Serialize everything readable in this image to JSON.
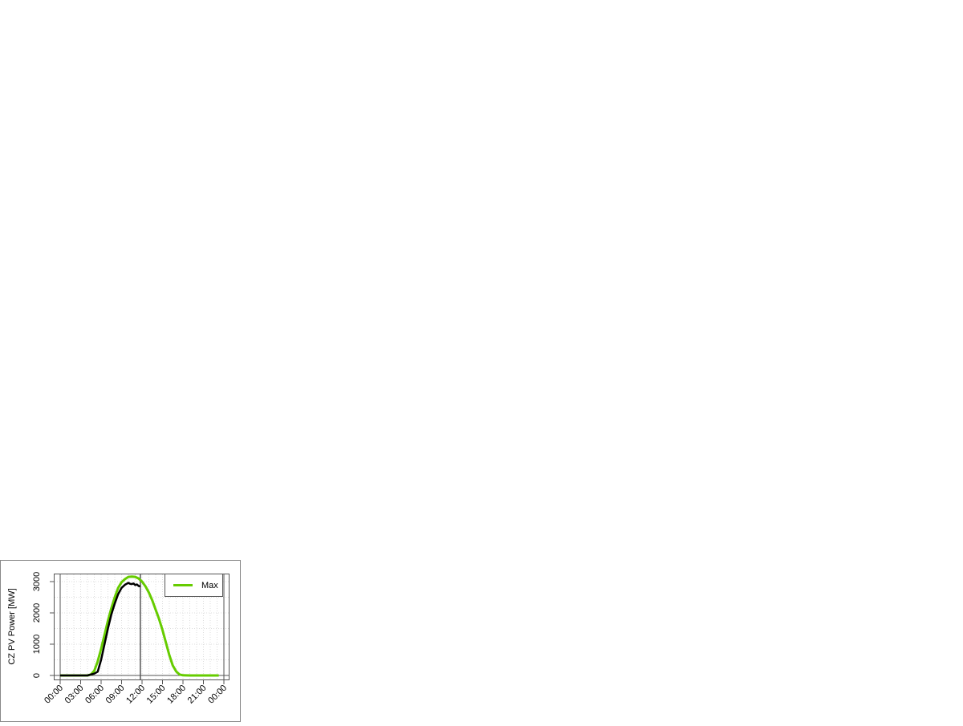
{
  "chart_data": {
    "type": "line",
    "title": "",
    "xlabel": "",
    "ylabel": "CZ PV Power [MW]",
    "x_unit": "hours",
    "xlim": [
      0,
      24
    ],
    "ylim": [
      0,
      3300
    ],
    "x_tick_labels": [
      "00:00",
      "03:00",
      "06:00",
      "09:00",
      "12:00",
      "15:00",
      "18:00",
      "21:00",
      "00:00"
    ],
    "x_ticks": [
      0,
      3,
      6,
      9,
      12,
      15,
      18,
      21,
      24
    ],
    "y_ticks": [
      0,
      1000,
      2000,
      3000
    ],
    "y_tick_labels": [
      "0",
      "1000",
      "2000",
      "3000"
    ],
    "grid": true,
    "legend_position": "top-right",
    "current_time_marker": 11.75,
    "series": [
      {
        "name": "Max",
        "color": "#66cc00",
        "x": [
          0,
          4,
          4.5,
          5,
          5.5,
          6,
          6.5,
          7,
          7.5,
          8,
          8.5,
          9,
          9.5,
          10,
          10.5,
          11,
          11.5,
          12,
          12.5,
          13,
          13.5,
          14,
          14.5,
          15,
          15.5,
          16,
          16.5,
          17,
          17.5,
          18,
          19,
          20,
          21,
          22,
          23.25
        ],
        "y": [
          0,
          0,
          30,
          150,
          450,
          850,
          1300,
          1750,
          2150,
          2500,
          2800,
          2980,
          3080,
          3150,
          3160,
          3150,
          3100,
          3000,
          2850,
          2650,
          2400,
          2100,
          1800,
          1450,
          1050,
          650,
          320,
          130,
          30,
          5,
          0,
          0,
          0,
          0,
          0
        ]
      },
      {
        "name": "",
        "color": "#000000",
        "x": [
          0,
          4,
          4.5,
          5,
          5.5,
          6,
          6.5,
          7,
          7.5,
          8,
          8.5,
          9,
          9.5,
          10,
          10.25,
          10.5,
          10.75,
          11,
          11.25,
          11.5,
          11.75
        ],
        "y": [
          0,
          0,
          30,
          60,
          120,
          500,
          1000,
          1500,
          1950,
          2300,
          2600,
          2800,
          2900,
          2960,
          2930,
          2920,
          2940,
          2890,
          2910,
          2860,
          2850
        ]
      }
    ]
  }
}
